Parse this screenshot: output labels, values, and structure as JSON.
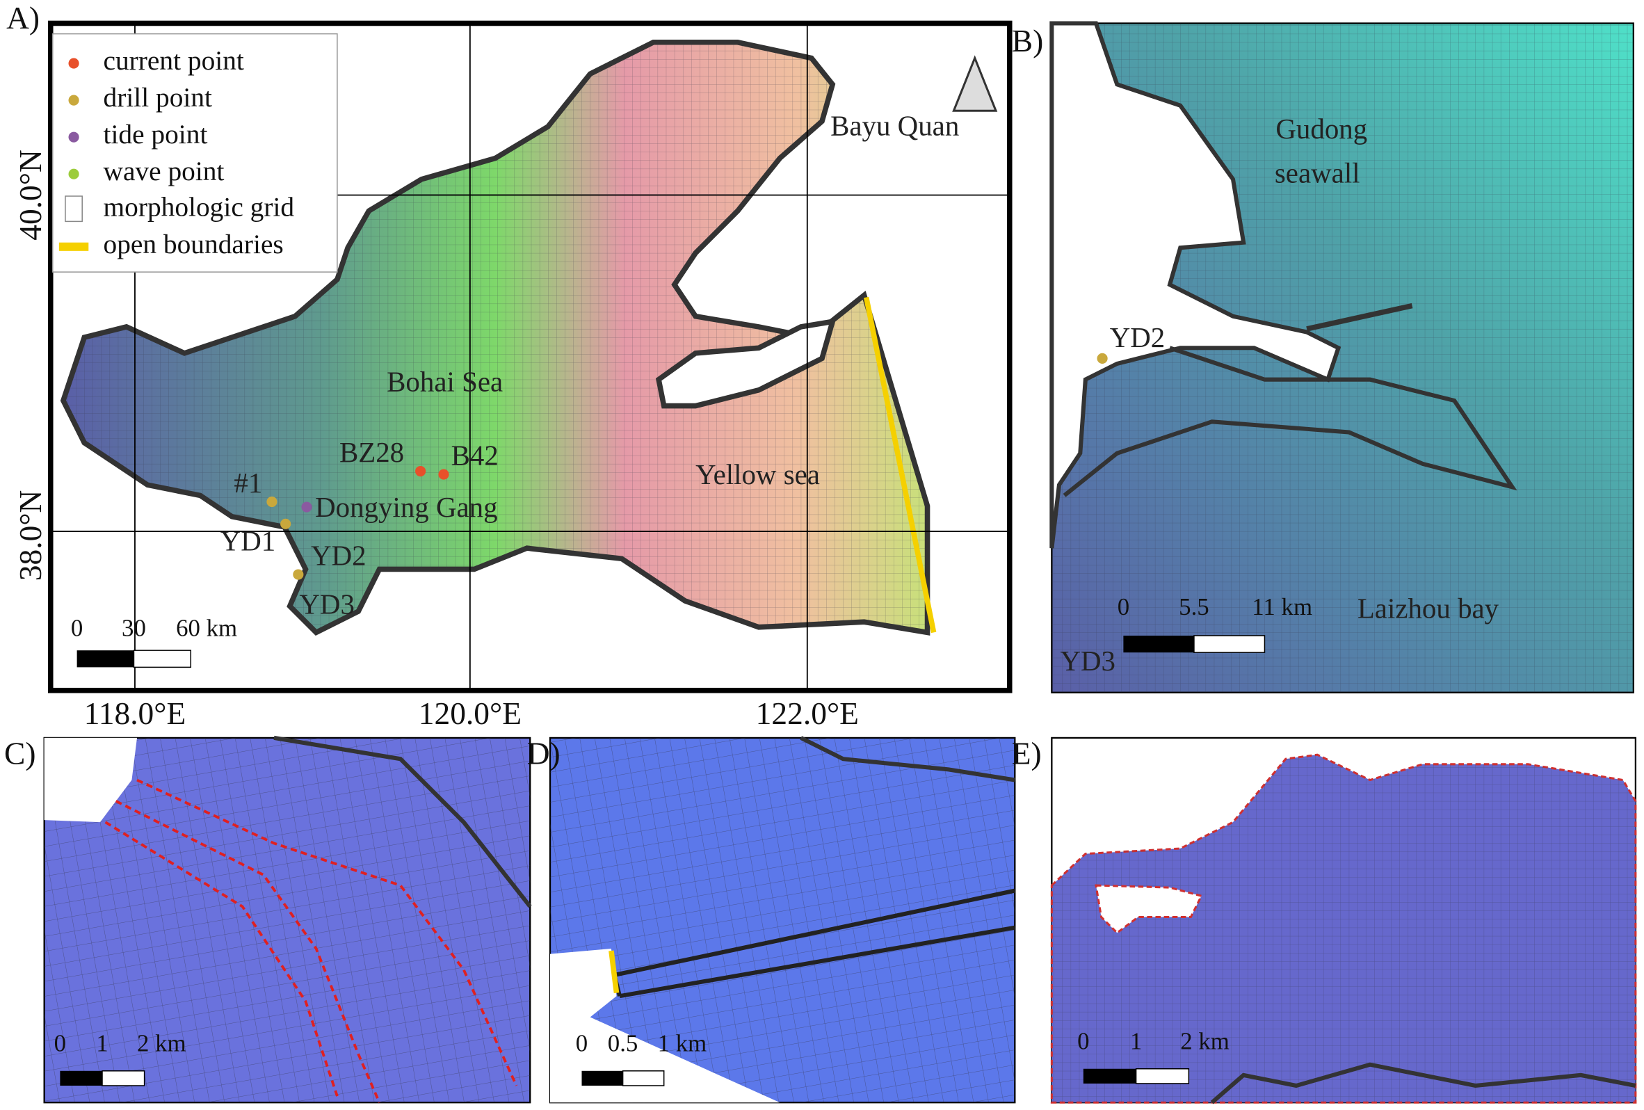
{
  "panels": {
    "a": {
      "label": "A)",
      "legend": [
        "current point",
        "drill point",
        "tide point",
        "wave point",
        "morphologic grid",
        "open boundaries"
      ],
      "places": [
        "Bayu Quan",
        "Bohai Sea",
        "BZ28",
        "B42",
        "#1",
        "Dongying Gang",
        "YD1",
        "YD2",
        "YD3",
        "Yellow sea"
      ],
      "lat_labels": [
        "40.0°N",
        "38.0°N"
      ],
      "lon_labels": [
        "118.0°E",
        "120.0°E",
        "122.0°E"
      ],
      "scale": [
        "0",
        "30",
        "60 km"
      ]
    },
    "b": {
      "label": "B)",
      "places": [
        "Gudong",
        "seawall",
        "YD2",
        "YD3",
        "Laizhou bay"
      ],
      "scale": [
        "0",
        "5.5",
        "11 km"
      ]
    },
    "c": {
      "label": "C)",
      "scale": [
        "0",
        "1",
        "2 km"
      ]
    },
    "d": {
      "label": "D)",
      "scale": [
        "0",
        "0.5",
        "1 km"
      ]
    },
    "e": {
      "label": "E)",
      "scale": [
        "0",
        "1",
        "2 km"
      ]
    }
  }
}
